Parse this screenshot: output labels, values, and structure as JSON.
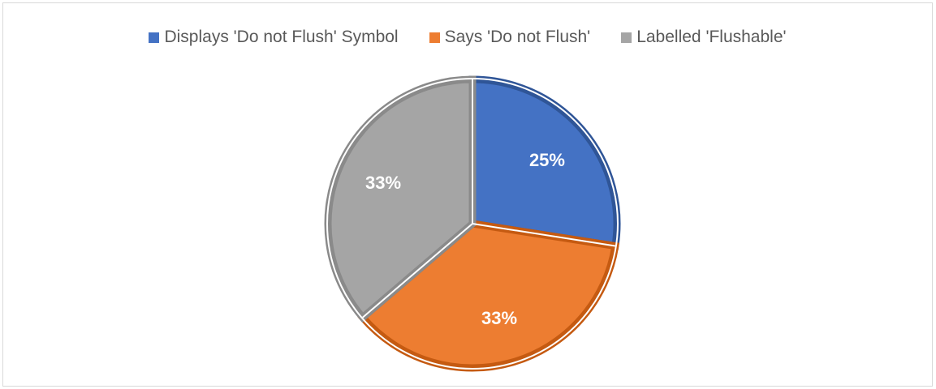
{
  "chart_data": {
    "type": "pie",
    "title": "",
    "legend_position": "top",
    "slices": [
      {
        "label": "Displays 'Do not Flush' Symbol",
        "value": 25,
        "display": "25%",
        "color": "#4472C4",
        "edge": "#2F5597"
      },
      {
        "label": "Says 'Do not Flush'",
        "value": 33,
        "display": "33%",
        "color": "#ED7D31",
        "edge": "#C55A11"
      },
      {
        "label": "Labelled 'Flushable'",
        "value": 33,
        "display": "33%",
        "color": "#A5A5A5",
        "edge": "#8A8A8A"
      }
    ]
  }
}
